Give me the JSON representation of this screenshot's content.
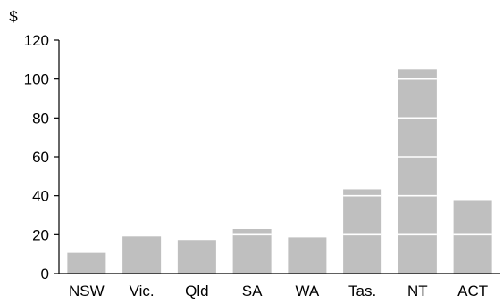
{
  "chart_data": {
    "type": "bar",
    "ylabel": "$",
    "categories": [
      "NSW",
      "Vic.",
      "Qld",
      "SA",
      "WA",
      "Tas.",
      "NT",
      "ACT"
    ],
    "values": [
      10.7,
      19.1,
      17.3,
      22.9,
      18.6,
      43.3,
      105.2,
      37.8
    ],
    "ylim": [
      0,
      120
    ],
    "yticks": [
      0,
      20,
      40,
      60,
      80,
      100,
      120
    ],
    "gridlines": "white lines drawn across bars only",
    "legend": "none",
    "colors": {
      "bar": "#bfbfbf",
      "axis": "#000000",
      "gridline": "#ffffff",
      "background": "#ffffff"
    }
  }
}
